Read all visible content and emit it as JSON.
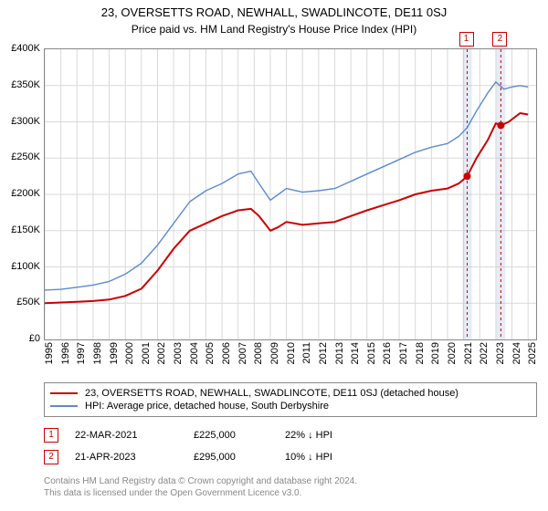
{
  "title_line1": "23, OVERSETTS ROAD, NEWHALL, SWADLINCOTE, DE11 0SJ",
  "title_line2": "Price paid vs. HM Land Registry's House Price Index (HPI)",
  "chart": {
    "type": "line",
    "xlim": [
      1995,
      2025.5
    ],
    "ylim": [
      0,
      400000
    ],
    "y_ticks": [
      0,
      50000,
      100000,
      150000,
      200000,
      250000,
      300000,
      350000,
      400000
    ],
    "y_tick_labels": [
      "£0",
      "£50K",
      "£100K",
      "£150K",
      "£200K",
      "£250K",
      "£300K",
      "£350K",
      "£400K"
    ],
    "x_ticks": [
      1995,
      1996,
      1997,
      1998,
      1999,
      2000,
      2001,
      2002,
      2003,
      2004,
      2005,
      2006,
      2007,
      2008,
      2009,
      2010,
      2011,
      2012,
      2013,
      2014,
      2015,
      2016,
      2017,
      2018,
      2019,
      2020,
      2021,
      2022,
      2023,
      2024,
      2025
    ],
    "background_color": "#ffffff",
    "grid_color": "#d9d9d9",
    "axis_color": "#888888",
    "series": [
      {
        "name": "23, OVERSETTS ROAD, NEWHALL, SWADLINCOTE, DE11 0SJ (detached house)",
        "color": "#cc0000",
        "width": 2,
        "data": [
          [
            1995,
            50000
          ],
          [
            1996,
            51000
          ],
          [
            1997,
            52000
          ],
          [
            1998,
            53000
          ],
          [
            1999,
            55000
          ],
          [
            2000,
            60000
          ],
          [
            2001,
            70000
          ],
          [
            2002,
            95000
          ],
          [
            2003,
            125000
          ],
          [
            2004,
            150000
          ],
          [
            2005,
            160000
          ],
          [
            2006,
            170000
          ],
          [
            2007,
            178000
          ],
          [
            2007.8,
            180000
          ],
          [
            2008.3,
            170000
          ],
          [
            2009,
            150000
          ],
          [
            2009.5,
            155000
          ],
          [
            2010,
            162000
          ],
          [
            2011,
            158000
          ],
          [
            2012,
            160000
          ],
          [
            2013,
            162000
          ],
          [
            2014,
            170000
          ],
          [
            2015,
            178000
          ],
          [
            2016,
            185000
          ],
          [
            2017,
            192000
          ],
          [
            2018,
            200000
          ],
          [
            2019,
            205000
          ],
          [
            2020,
            208000
          ],
          [
            2020.7,
            215000
          ],
          [
            2021.22,
            225000
          ],
          [
            2021.8,
            250000
          ],
          [
            2022.5,
            275000
          ],
          [
            2023.0,
            298000
          ],
          [
            2023.31,
            295000
          ],
          [
            2023.8,
            300000
          ],
          [
            2024.5,
            312000
          ],
          [
            2025,
            310000
          ]
        ]
      },
      {
        "name": "HPI: Average price, detached house, South Derbyshire",
        "color": "#5b8bd0",
        "width": 1.4,
        "data": [
          [
            1995,
            68000
          ],
          [
            1996,
            69000
          ],
          [
            1997,
            72000
          ],
          [
            1998,
            75000
          ],
          [
            1999,
            80000
          ],
          [
            2000,
            90000
          ],
          [
            2001,
            105000
          ],
          [
            2002,
            130000
          ],
          [
            2003,
            160000
          ],
          [
            2004,
            190000
          ],
          [
            2005,
            205000
          ],
          [
            2006,
            215000
          ],
          [
            2007,
            228000
          ],
          [
            2007.8,
            232000
          ],
          [
            2008.3,
            215000
          ],
          [
            2009,
            192000
          ],
          [
            2009.5,
            200000
          ],
          [
            2010,
            208000
          ],
          [
            2011,
            203000
          ],
          [
            2012,
            205000
          ],
          [
            2013,
            208000
          ],
          [
            2014,
            218000
          ],
          [
            2015,
            228000
          ],
          [
            2016,
            238000
          ],
          [
            2017,
            248000
          ],
          [
            2018,
            258000
          ],
          [
            2019,
            265000
          ],
          [
            2020,
            270000
          ],
          [
            2020.7,
            280000
          ],
          [
            2021.22,
            292000
          ],
          [
            2021.8,
            315000
          ],
          [
            2022.5,
            340000
          ],
          [
            2023.0,
            355000
          ],
          [
            2023.5,
            345000
          ],
          [
            2024,
            348000
          ],
          [
            2024.5,
            350000
          ],
          [
            2025,
            348000
          ]
        ]
      }
    ],
    "markers": [
      {
        "id": "1",
        "x": 2021.22,
        "y": 225000,
        "date": "22-MAR-2021",
        "price": "£225,000",
        "diff": "22% ↓ HPI"
      },
      {
        "id": "2",
        "x": 2023.31,
        "y": 295000,
        "date": "21-APR-2023",
        "price": "£295,000",
        "diff": "10% ↓ HPI"
      }
    ],
    "marker_band_color": "rgba(150,180,220,0.25)",
    "marker_line_color": "#cc0000"
  },
  "footer_line1": "Contains HM Land Registry data © Crown copyright and database right 2024.",
  "footer_line2": "This data is licensed under the Open Government Licence v3.0."
}
